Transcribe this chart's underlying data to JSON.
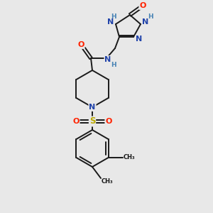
{
  "bg_color": "#e8e8e8",
  "bond_color": "#1a1a1a",
  "colors": {
    "N": "#2244aa",
    "O": "#ff2200",
    "S": "#bbaa00",
    "C": "#1a1a1a",
    "H": "#4682b4"
  }
}
